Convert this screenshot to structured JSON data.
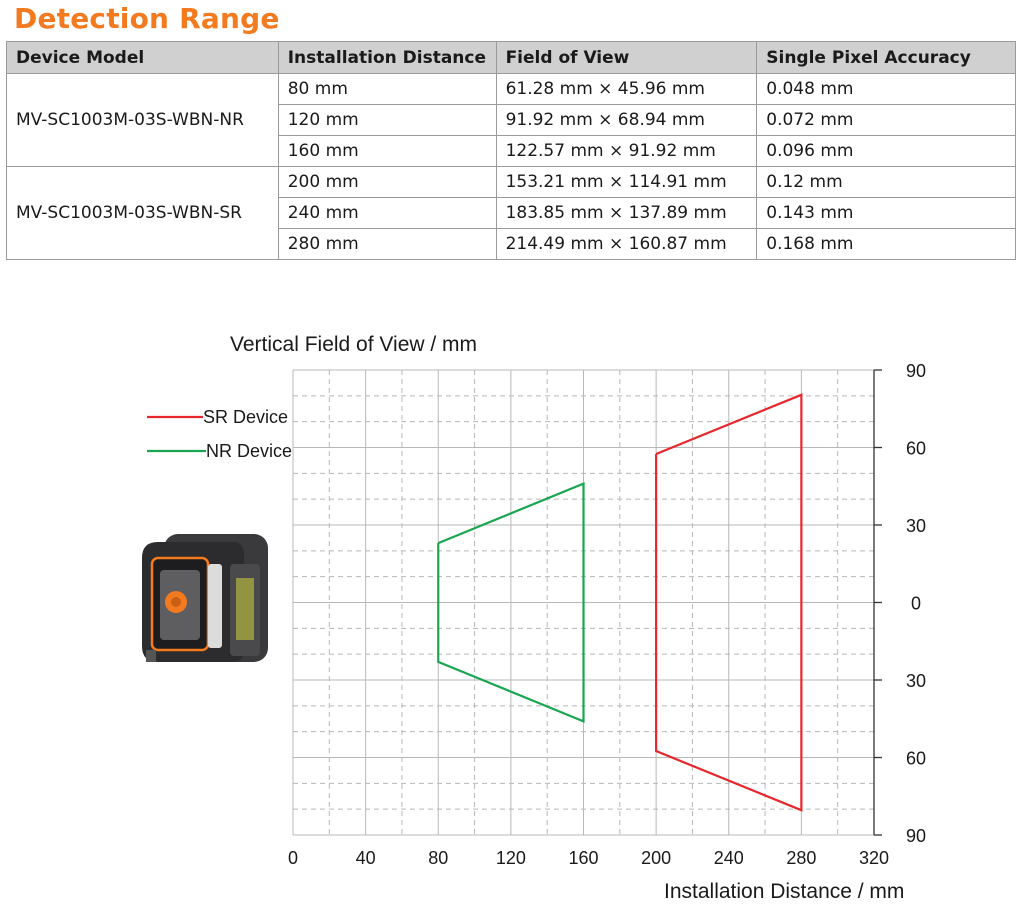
{
  "page": {
    "title": "Detection Range",
    "accent_color": "#f47a20"
  },
  "table": {
    "headers": [
      "Device Model",
      "Installation Distance",
      "Field of View",
      "Single Pixel Accuracy"
    ],
    "groups": [
      {
        "model": "MV-SC1003M-03S-WBN-NR",
        "rows": [
          {
            "distance": "80 mm",
            "fov": "61.28 mm × 45.96 mm",
            "accuracy": "0.048 mm"
          },
          {
            "distance": "120 mm",
            "fov": "91.92 mm × 68.94 mm",
            "accuracy": "0.072 mm"
          },
          {
            "distance": "160 mm",
            "fov": "122.57 mm × 91.92 mm",
            "accuracy": "0.096 mm"
          }
        ]
      },
      {
        "model": "MV-SC1003M-03S-WBN-SR",
        "rows": [
          {
            "distance": "200 mm",
            "fov": "153.21 mm × 114.91 mm",
            "accuracy": "0.12 mm"
          },
          {
            "distance": "240 mm",
            "fov": "183.85 mm × 137.89 mm",
            "accuracy": "0.143 mm"
          },
          {
            "distance": "280 mm",
            "fov": "214.49 mm × 160.87 mm",
            "accuracy": "0.168 mm"
          }
        ]
      }
    ]
  },
  "chart_data": {
    "type": "line",
    "title": "",
    "ylabel": "Vertical Field of View / mm",
    "xlabel": "Installation Distance / mm",
    "xlim": [
      0,
      320
    ],
    "ylim": [
      -90,
      90
    ],
    "x_ticks": [
      0,
      40,
      80,
      120,
      160,
      200,
      240,
      280,
      320
    ],
    "x_tick_labels": [
      "0",
      "40",
      "80",
      "120",
      "160",
      "200",
      "240",
      "280",
      "320"
    ],
    "y_ticks": [
      90,
      60,
      30,
      0,
      -30,
      -60,
      -90
    ],
    "y_tick_labels": [
      "90",
      "60",
      "30",
      "0",
      "30",
      "60",
      "90"
    ],
    "grid": true,
    "legend_position": "top-left",
    "series": [
      {
        "name": "SR Device",
        "color": "#e8262d",
        "points": [
          [
            200,
            57.5
          ],
          [
            280,
            80.4
          ],
          [
            280,
            -80.4
          ],
          [
            200,
            -57.5
          ],
          [
            200,
            57.5
          ]
        ]
      },
      {
        "name": "NR Device",
        "color": "#1aa650",
        "points": [
          [
            80,
            23
          ],
          [
            160,
            46
          ],
          [
            160,
            -46
          ],
          [
            80,
            -23
          ],
          [
            80,
            23
          ]
        ]
      }
    ]
  }
}
